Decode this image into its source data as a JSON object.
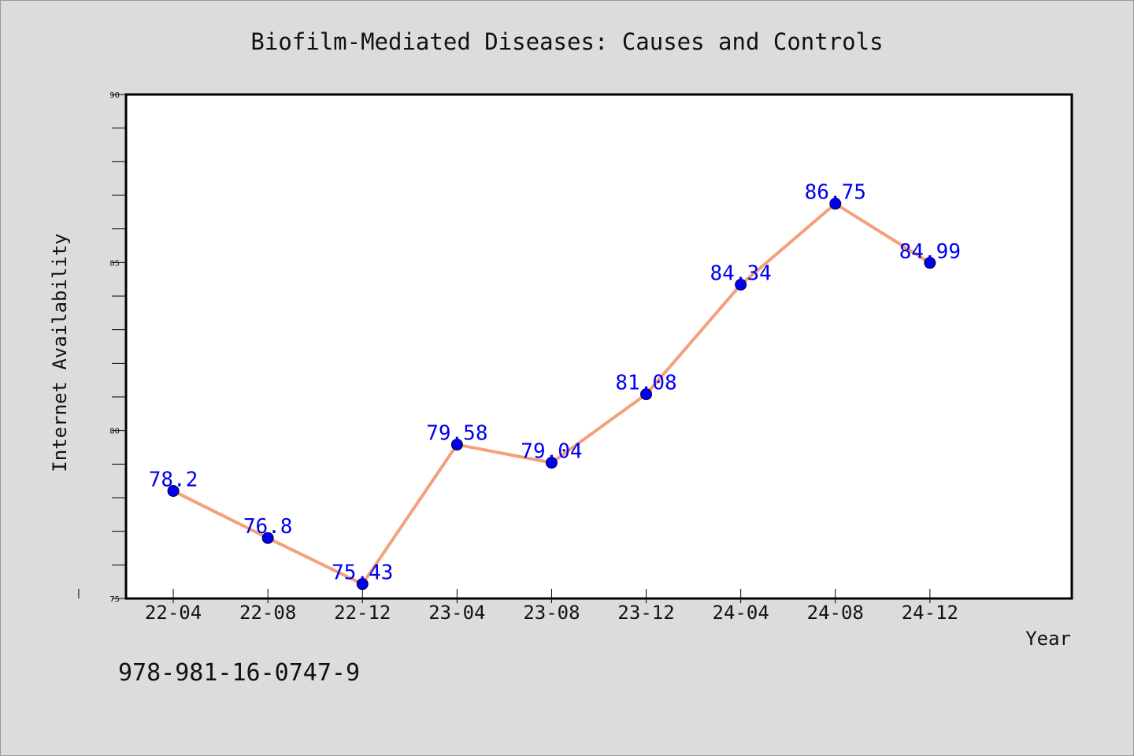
{
  "chart_data": {
    "type": "line",
    "title": "Biofilm-Mediated Diseases: Causes and Controls",
    "xlabel": "Year",
    "ylabel": "Internet Availability",
    "categories": [
      "22-04",
      "22-08",
      "22-12",
      "23-04",
      "23-08",
      "23-12",
      "24-04",
      "24-08",
      "24-12"
    ],
    "series": [
      {
        "values": [
          78.2,
          76.8,
          75.43,
          79.58,
          79.04,
          81.08,
          84.34,
          86.75,
          84.99
        ],
        "labels": [
          "78.2",
          "76.8",
          "75.43",
          "79.58",
          "79.04",
          "81.08",
          "84.34",
          "86.75",
          "84.99"
        ]
      }
    ],
    "ylim": [
      75,
      90
    ],
    "yticks": [
      75,
      80,
      85,
      90
    ],
    "grid": false,
    "line_color": "#f4a07c",
    "marker_color": "#0000ee",
    "label_color": "#0000ee"
  },
  "footer": {
    "isbn": "978-981-16-0747-9"
  }
}
